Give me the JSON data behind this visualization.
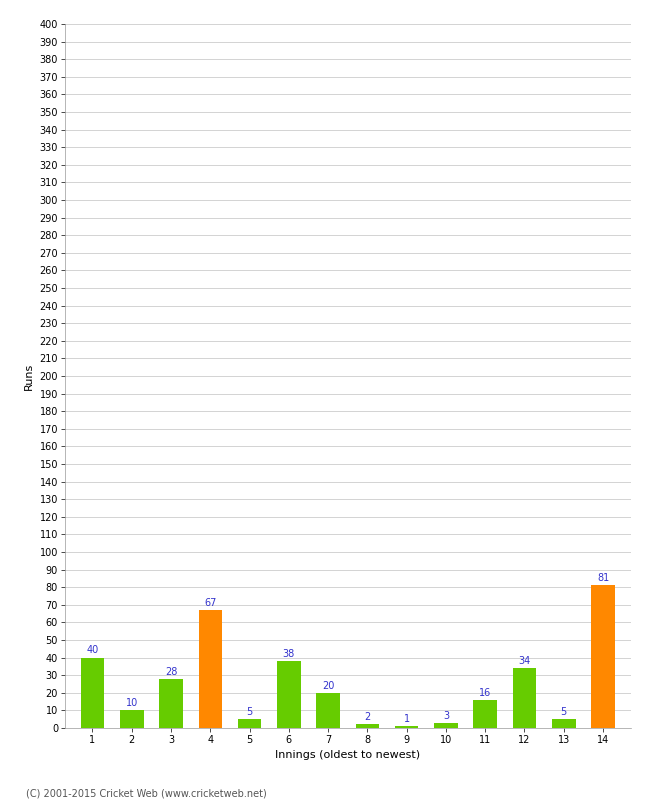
{
  "innings": [
    1,
    2,
    3,
    4,
    5,
    6,
    7,
    8,
    9,
    10,
    11,
    12,
    13,
    14
  ],
  "runs": [
    40,
    10,
    28,
    67,
    5,
    38,
    20,
    2,
    1,
    3,
    16,
    34,
    5,
    81
  ],
  "colors": [
    "#66cc00",
    "#66cc00",
    "#66cc00",
    "#ff8800",
    "#66cc00",
    "#66cc00",
    "#66cc00",
    "#66cc00",
    "#66cc00",
    "#66cc00",
    "#66cc00",
    "#66cc00",
    "#66cc00",
    "#ff8800"
  ],
  "xlabel": "Innings (oldest to newest)",
  "ylabel": "Runs",
  "ylim": [
    0,
    400
  ],
  "ytick_step": 10,
  "value_label_color": "#3333cc",
  "value_label_fontsize": 7,
  "axis_label_fontsize": 8,
  "tick_fontsize": 7,
  "background_color": "#ffffff",
  "grid_color": "#cccccc",
  "footer": "(C) 2001-2015 Cricket Web (www.cricketweb.net)"
}
